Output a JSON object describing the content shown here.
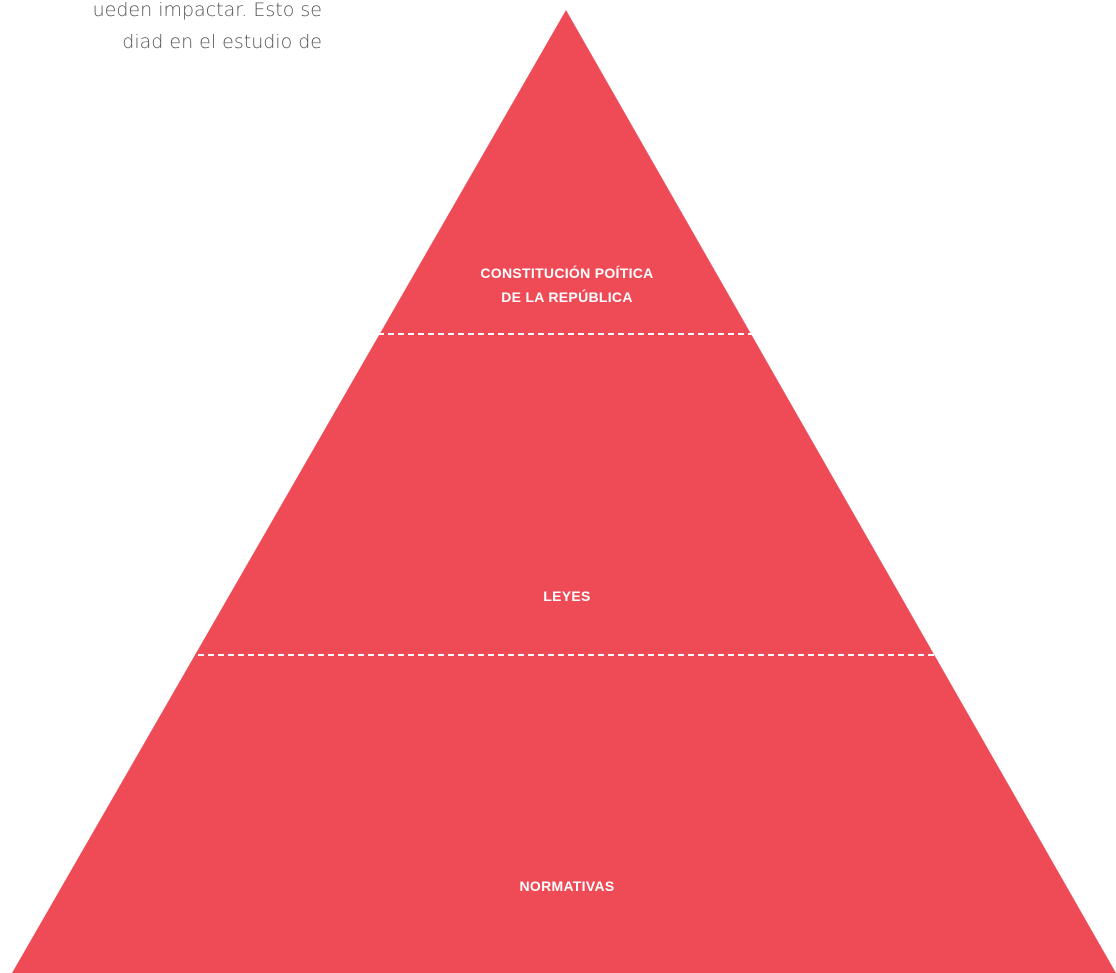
{
  "intro_text": {
    "lines": [
      "ueden impactar. Esto se",
      "diad en el estudio de"
    ]
  },
  "pyramid": {
    "levels": [
      {
        "label_lines": [
          "CONSTITUCIÓN POÍTICA",
          "DE LA REPÚBLICA"
        ]
      },
      {
        "label_lines": [
          "LEYES"
        ]
      },
      {
        "label_lines": [
          "NORMATIVAS"
        ]
      }
    ]
  }
}
